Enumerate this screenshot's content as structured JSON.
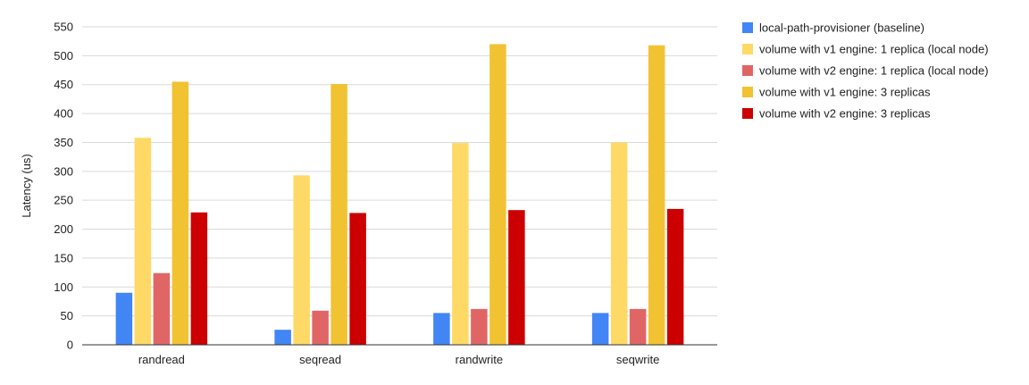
{
  "chart_data": {
    "type": "bar",
    "title": "",
    "xlabel": "",
    "ylabel": "Latency (us)",
    "categories": [
      "randread",
      "seqread",
      "randwrite",
      "seqwrite"
    ],
    "ylim": [
      0,
      550
    ],
    "yticks": [
      0,
      50,
      100,
      150,
      200,
      250,
      300,
      350,
      400,
      450,
      500,
      550
    ],
    "grid": true,
    "legend_position": "right",
    "series": [
      {
        "name": "local-path-provisioner (baseline)",
        "color": "#4285f4",
        "values": [
          90,
          26,
          55,
          55
        ]
      },
      {
        "name": "volume with v1 engine: 1 replica (local node)",
        "color": "#ffd966",
        "values": [
          358,
          293,
          349,
          350
        ]
      },
      {
        "name": "volume with v2 engine: 1 replica (local node)",
        "color": "#e06666",
        "values": [
          124,
          59,
          62,
          62
        ]
      },
      {
        "name": "volume with v1 engine: 3 replicas",
        "color": "#f1c232",
        "values": [
          455,
          451,
          520,
          518
        ]
      },
      {
        "name": "volume with v2 engine: 3 replicas",
        "color": "#cc0000",
        "values": [
          229,
          228,
          233,
          235
        ]
      }
    ]
  }
}
